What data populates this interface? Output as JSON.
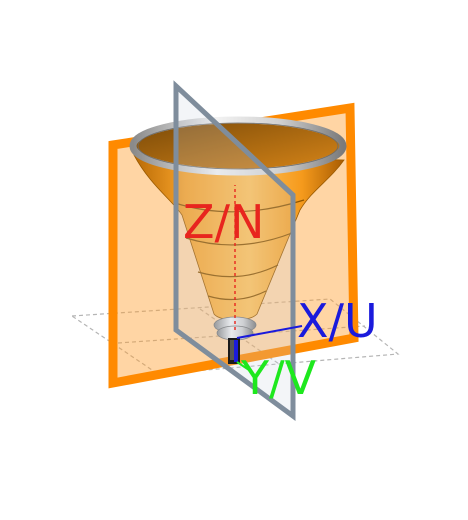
{
  "axes": {
    "z": {
      "label": "Z/N",
      "color": "#e8251e"
    },
    "x": {
      "label": "X/U",
      "color": "#1a1adc"
    },
    "y": {
      "label": "Y/V",
      "color": "#1ee81e"
    }
  },
  "colors": {
    "horn_body": "#f59a1c",
    "horn_rim": "#c8c8c8",
    "plane_orange": "#ff8a00",
    "plane_gray": "#8090a0",
    "ground_grid": "#b0b0b0"
  },
  "icons": {
    "horn": "conical-horn-3d",
    "feed": "feed-waveguide"
  }
}
